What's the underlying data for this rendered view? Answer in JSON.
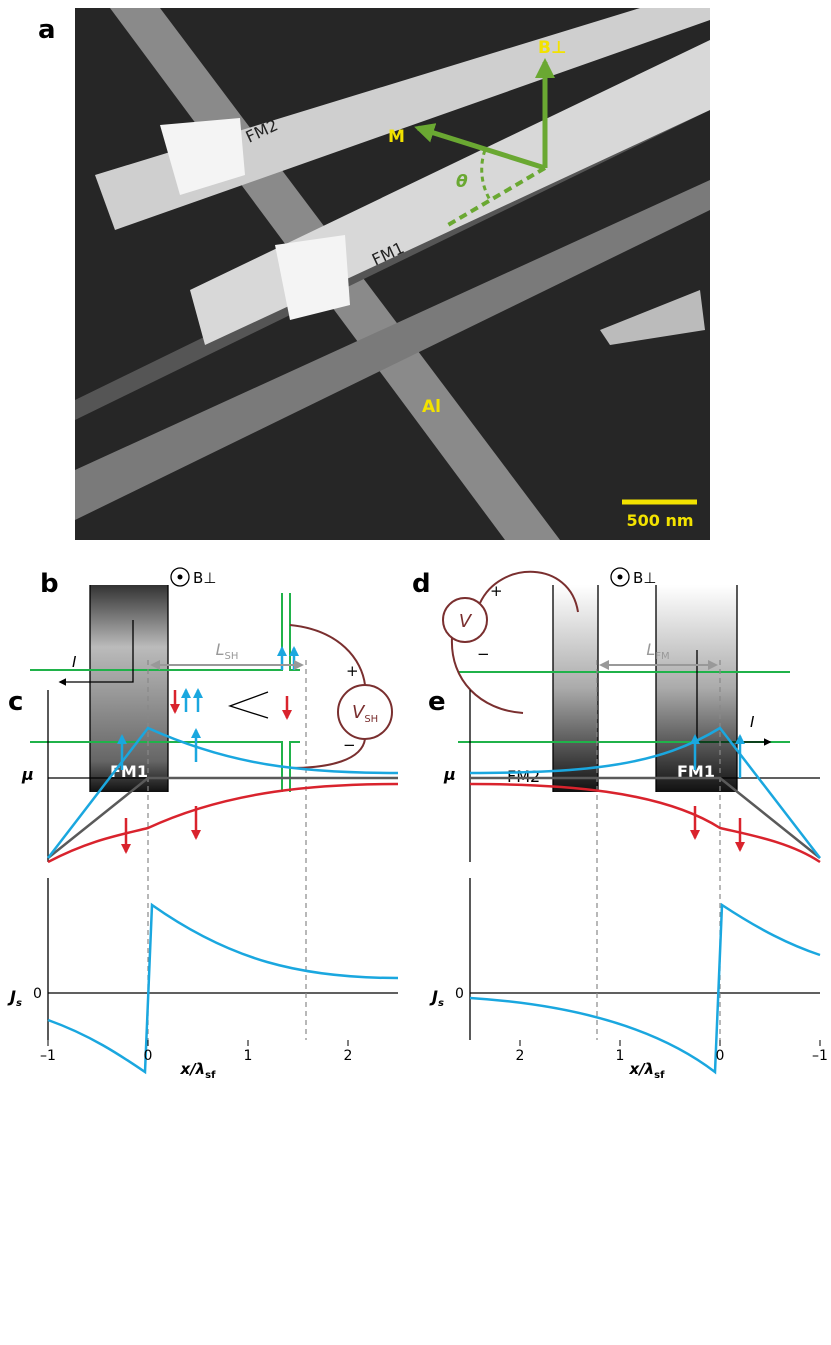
{
  "panels": {
    "a": {
      "label": "a",
      "fm2": "FM2",
      "fm1": "FM1",
      "al": "Al",
      "m": "M",
      "b": "B⊥",
      "theta": "θ",
      "scale": "500 nm"
    },
    "b": {
      "label": "b",
      "b": "B⊥",
      "current": "I",
      "voltage": "V",
      "voltage_sub": "SH",
      "plus": "+",
      "minus": "−",
      "fm": "FM1"
    },
    "d": {
      "label": "d",
      "b": "B⊥",
      "current": "I",
      "voltage": "V",
      "plus": "+",
      "minus": "−",
      "fm2": "FM2",
      "fm1": "FM1"
    },
    "c": {
      "label": "c",
      "length": "L",
      "length_sub": "SH",
      "mu": "μ",
      "js": "J",
      "js_sub": "s",
      "zero": "0",
      "xlabel": "x/λ",
      "xlabel_sub": "sf",
      "xlim": [
        -1,
        2.5
      ],
      "xticks": [
        {
          "value": -1,
          "label": "–1"
        },
        0,
        1,
        2
      ]
    },
    "e": {
      "label": "e",
      "length": "L",
      "length_sub": "FM",
      "mu": "μ",
      "js": "J",
      "js_sub": "s",
      "zero": "0",
      "xlabel": "x/λ",
      "xlabel_sub": "sf",
      "xlim": [
        2.5,
        -1
      ],
      "xticks": [
        2,
        1,
        0,
        {
          "value": -1,
          "label": "–1"
        }
      ]
    }
  }
}
